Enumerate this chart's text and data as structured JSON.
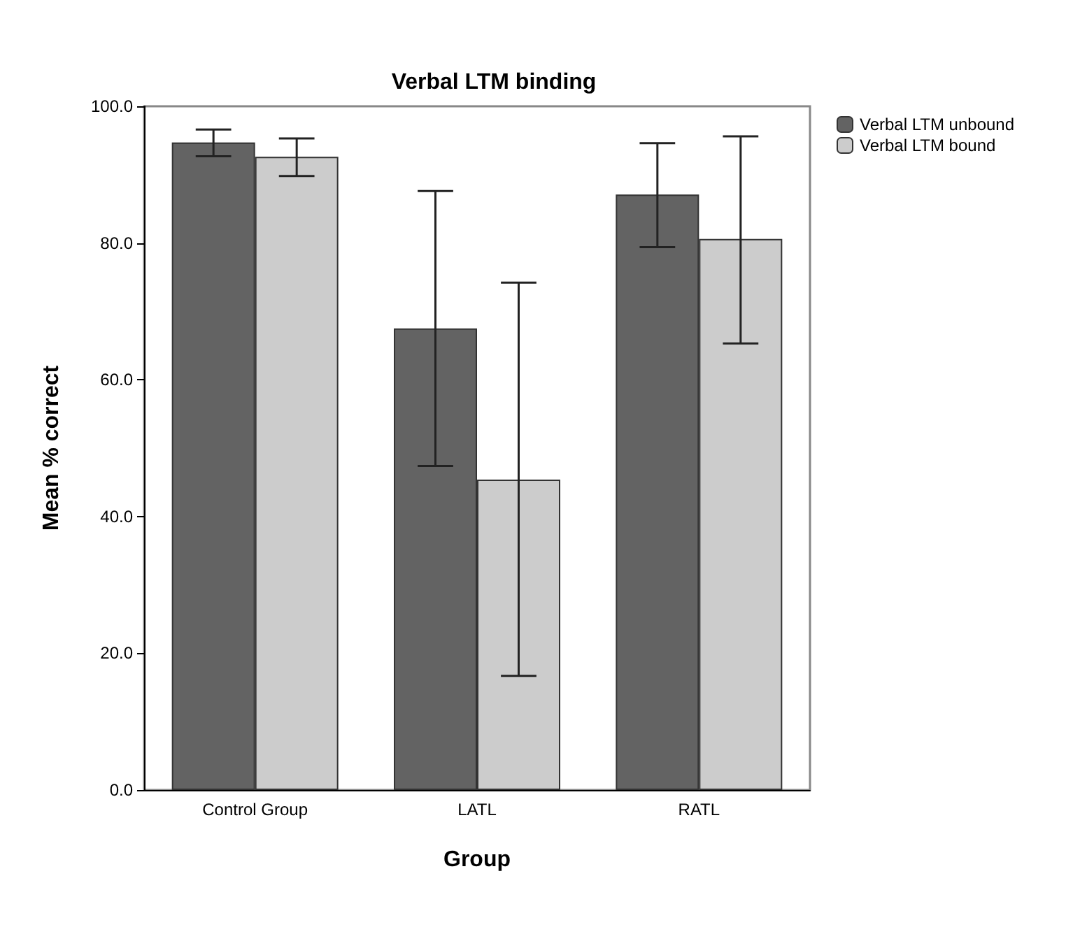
{
  "chart_data": {
    "type": "bar",
    "title": "Verbal LTM binding",
    "xlabel": "Group",
    "ylabel": "Mean % correct",
    "categories": [
      "Control Group",
      "LATL",
      "RATL"
    ],
    "series": [
      {
        "name": "Verbal LTM unbound",
        "color": "#636363",
        "values": [
          94.7,
          67.5,
          87.1
        ],
        "errors": [
          [
            92.7,
            96.6
          ],
          [
            47.4,
            87.6
          ],
          [
            79.4,
            94.6
          ]
        ]
      },
      {
        "name": "Verbal LTM bound",
        "color": "#cccccc",
        "values": [
          92.6,
          45.4,
          80.6
        ],
        "errors": [
          [
            89.8,
            95.3
          ],
          [
            16.7,
            74.2
          ],
          [
            65.3,
            95.6
          ]
        ]
      }
    ],
    "ylim": [
      0,
      100
    ],
    "yticks": [
      {
        "value": 0,
        "label": "0.0"
      },
      {
        "value": 20,
        "label": "20.0"
      },
      {
        "value": 40,
        "label": "40.0"
      },
      {
        "value": 60,
        "label": "60.0"
      },
      {
        "value": 80,
        "label": "80.0"
      },
      {
        "value": 100,
        "label": "100.0"
      }
    ],
    "grid": false,
    "legend": "top right"
  }
}
